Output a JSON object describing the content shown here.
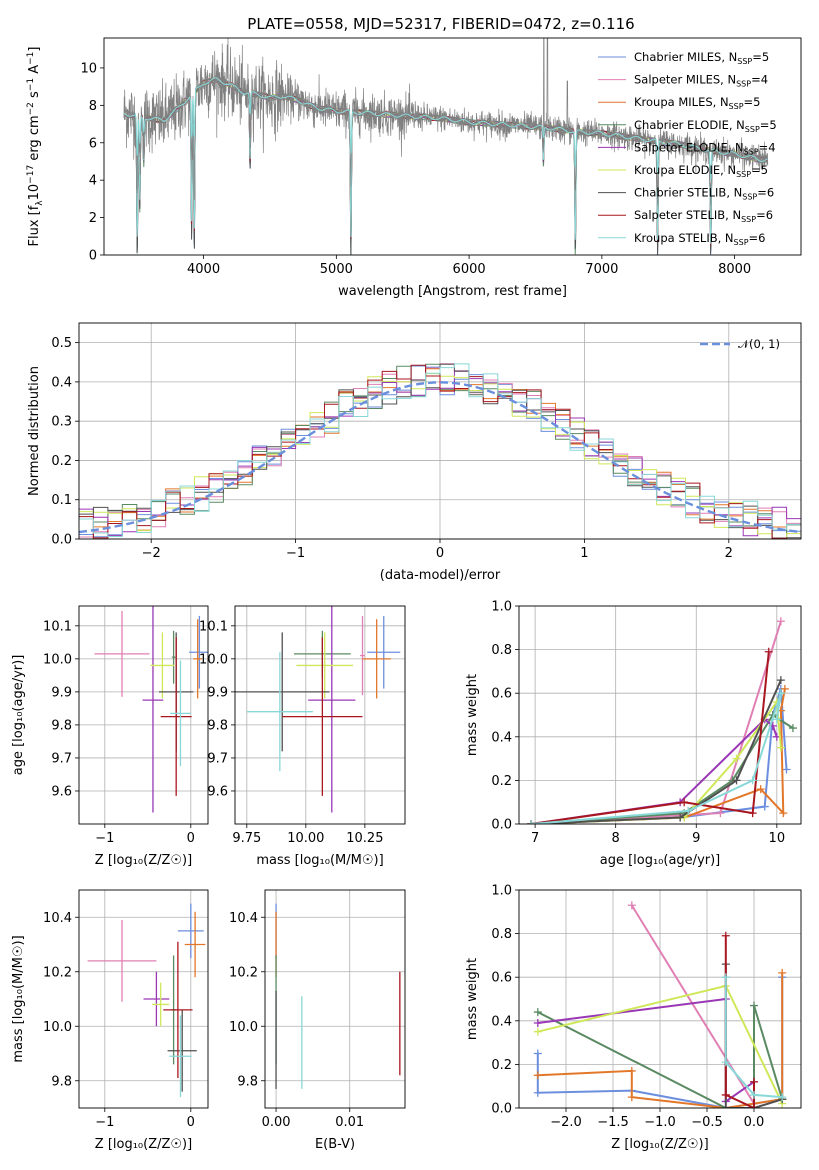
{
  "figure": {
    "title": "PLATE=0558, MJD=52317, FIBERID=0472, z=0.116"
  },
  "models": [
    {
      "name": "Chabrier MILES, N_SSP=5",
      "label_main": "Chabrier MILES, N",
      "label_sub": "SSP",
      "label_tail": "=5",
      "color": "#6b8ede"
    },
    {
      "name": "Salpeter MILES, N_SSP=4",
      "label_main": "Salpeter MILES, N",
      "label_sub": "SSP",
      "label_tail": "=4",
      "color": "#e07fb4"
    },
    {
      "name": "Kroupa MILES, N_SSP=5",
      "label_main": "Kroupa MILES, N",
      "label_sub": "SSP",
      "label_tail": "=5",
      "color": "#e2772a"
    },
    {
      "name": "Chabrier ELODIE, N_SSP=5",
      "label_main": "Chabrier ELODIE, N",
      "label_sub": "SSP",
      "label_tail": "=5",
      "color": "#5a8a62"
    },
    {
      "name": "Salpeter ELODIE, N_SSP=4",
      "label_main": "Salpeter ELODIE, N",
      "label_sub": "SSP",
      "label_tail": "=4",
      "color": "#9a37b5"
    },
    {
      "name": "Kroupa ELODIE, N_SSP=5",
      "label_main": "Kroupa ELODIE, N",
      "label_sub": "SSP",
      "label_tail": "=5",
      "color": "#cfe85a"
    },
    {
      "name": "Chabrier STELIB, N_SSP=6",
      "label_main": "Chabrier STELIB, N",
      "label_sub": "SSP",
      "label_tail": "=6",
      "color": "#505050"
    },
    {
      "name": "Salpeter STELIB, N_SSP=6",
      "label_main": "Salpeter STELIB, N",
      "label_sub": "SSP",
      "label_tail": "=6",
      "color": "#a8161f"
    },
    {
      "name": "Kroupa STELIB, N_SSP=6",
      "label_main": "Kroupa STELIB, N",
      "label_sub": "SSP",
      "label_tail": "=6",
      "color": "#88d8d8"
    }
  ],
  "chart_data": [
    {
      "id": "spectrum",
      "type": "line",
      "title": "PLATE=0558, MJD=52317, FIBERID=0472, z=0.116",
      "xlabel": "wavelength [Angstrom, rest frame]",
      "ylabel_main": "Flux [f",
      "ylabel_full": "Flux [fλ10^-17 erg cm^-2 s^-1 A^-1]",
      "xlim": [
        3250,
        8500
      ],
      "ylim": [
        0,
        11.6
      ],
      "xticks": [
        4000,
        5000,
        6000,
        7000,
        8000
      ],
      "yticks": [
        0,
        2,
        4,
        6,
        8,
        10
      ],
      "grid": false,
      "legend_position": "top-right",
      "data_color": "#808080",
      "continuum": {
        "x": [
          3400,
          3500,
          3600,
          3700,
          3800,
          3900,
          4000,
          4100,
          4200,
          4300,
          4400,
          4500,
          4600,
          4700,
          4800,
          4900,
          5000,
          5200,
          5400,
          5600,
          5800,
          6000,
          6200,
          6400,
          6600,
          6800,
          7000,
          7200,
          7400,
          7600,
          7800,
          8000,
          8200
        ],
        "y": [
          7.6,
          7.4,
          7.3,
          7.2,
          7.8,
          8.5,
          9.2,
          9.4,
          9.1,
          8.7,
          8.6,
          8.4,
          8.5,
          8.3,
          8.0,
          7.8,
          7.7,
          7.6,
          7.5,
          7.4,
          7.3,
          7.1,
          7.0,
          6.9,
          6.8,
          6.6,
          6.5,
          6.3,
          6.1,
          5.9,
          5.6,
          5.4,
          5.1
        ]
      },
      "features": [
        {
          "x": 3500,
          "depth": 7.5
        },
        {
          "x": 3520,
          "depth": 5.0
        },
        {
          "x": 3550,
          "depth": 2.5
        },
        {
          "x": 3910,
          "depth": 7.6
        },
        {
          "x": 3930,
          "depth": 8.5
        },
        {
          "x": 4350,
          "depth": 4.0
        },
        {
          "x": 5110,
          "depth": 7.6
        },
        {
          "x": 6560,
          "depth": 2.0
        },
        {
          "x": 6800,
          "depth": 6.6
        },
        {
          "x": 7420,
          "depth": 6.0
        },
        {
          "x": 7820,
          "depth": 5.6
        }
      ],
      "emission_lines": [
        {
          "x": 6563,
          "height": 13.0
        },
        {
          "x": 6590,
          "height": 13.0
        },
        {
          "x": 6740,
          "height": 9.3
        }
      ]
    },
    {
      "id": "residuals",
      "type": "histogram",
      "xlabel": "(data-model)/error",
      "ylabel": "Normed distribution",
      "xlim": [
        -2.5,
        2.5
      ],
      "ylim": [
        0,
        0.55
      ],
      "xticks": [
        -2,
        -1,
        0,
        1,
        2
      ],
      "xtick_labels": [
        "−2",
        "−1",
        "0",
        "1",
        "2"
      ],
      "yticks": [
        0,
        0.1,
        0.2,
        0.3,
        0.4,
        0.5
      ],
      "ytick_labels": [
        "0.0",
        "0.1",
        "0.2",
        "0.3",
        "0.4",
        "0.5"
      ],
      "grid": true,
      "legend_position": "top-right",
      "reference_curve": {
        "name": "N(0,1)",
        "label": "𝒩(0, 1)",
        "color": "#6a8fdc",
        "mean": 0,
        "sigma": 1
      },
      "bin_width": 0.1
    },
    {
      "id": "age-vs-Z",
      "type": "errorbar",
      "xlabel": "Z [log₁₀(Z/Z☉)]",
      "ylabel": "age  [log₁₀(age/yr)]",
      "xlim": [
        -1.3,
        0.2
      ],
      "ylim": [
        9.5,
        10.16
      ],
      "xticks": [
        -1,
        0
      ],
      "xtick_labels": [
        "−1",
        "0"
      ],
      "yticks": [
        9.6,
        9.7,
        9.8,
        9.9,
        10.0,
        10.1
      ],
      "ytick_labels": [
        "9.6",
        "9.7",
        "9.8",
        "9.9",
        "10.0",
        "10.1"
      ],
      "grid": true,
      "points": [
        {
          "model": 0,
          "x": 0.1,
          "xerr": 0.12,
          "y": 10.02,
          "yerr": 0.11
        },
        {
          "model": 1,
          "x": -0.8,
          "xerr": 0.32,
          "y": 10.015,
          "yerr": 0.13
        },
        {
          "model": 2,
          "x": 0.08,
          "xerr": 0.05,
          "y": 10.0,
          "yerr": 0.12
        },
        {
          "model": 3,
          "x": -0.2,
          "xerr": 0.02,
          "y": 10.005,
          "yerr": 0.08
        },
        {
          "model": 4,
          "x": -0.44,
          "xerr": 0.12,
          "y": 9.875,
          "yerr": 0.34
        },
        {
          "model": 5,
          "x": -0.33,
          "xerr": 0.14,
          "y": 9.98,
          "yerr": 0.1
        },
        {
          "model": 6,
          "x": -0.17,
          "xerr": 0.2,
          "y": 9.9,
          "yerr": 0.18
        },
        {
          "model": 7,
          "x": -0.17,
          "xerr": 0.18,
          "y": 9.825,
          "yerr": 0.24
        },
        {
          "model": 8,
          "x": -0.12,
          "xerr": 0.12,
          "y": 9.835,
          "yerr": 0.16
        }
      ]
    },
    {
      "id": "age-vs-mass",
      "type": "errorbar",
      "xlabel": "mass [log₁₀(M/M☉)]",
      "xlim": [
        9.7,
        10.42
      ],
      "ylim": [
        9.5,
        10.16
      ],
      "xticks": [
        9.75,
        10.0,
        10.25
      ],
      "xtick_labels": [
        "9.75",
        "10.00",
        "10.25"
      ],
      "yticks": [
        9.6,
        9.7,
        9.8,
        9.9,
        10.0,
        10.1
      ],
      "ytick_labels": [
        "9.6",
        "9.7",
        "9.8",
        "9.9",
        "10.0",
        "10.1"
      ],
      "grid": true,
      "points": [
        {
          "model": 0,
          "x": 10.33,
          "xerr": 0.07,
          "y": 10.02,
          "yerr": 0.11
        },
        {
          "model": 1,
          "x": 10.24,
          "xerr": 0.01,
          "y": 10.01,
          "yerr": 0.12
        },
        {
          "model": 2,
          "x": 10.3,
          "xerr": 0.06,
          "y": 10.0,
          "yerr": 0.12
        },
        {
          "model": 3,
          "x": 10.07,
          "xerr": 0.12,
          "y": 10.015,
          "yerr": 0.07
        },
        {
          "model": 4,
          "x": 10.11,
          "xerr": 0.1,
          "y": 9.875,
          "yerr": 0.34
        },
        {
          "model": 5,
          "x": 10.08,
          "xerr": 0.12,
          "y": 9.98,
          "yerr": 0.1
        },
        {
          "model": 6,
          "x": 9.9,
          "xerr": 0.2,
          "y": 9.9,
          "yerr": 0.18
        },
        {
          "model": 7,
          "x": 10.07,
          "xerr": 0.17,
          "y": 9.825,
          "yerr": 0.24
        },
        {
          "model": 8,
          "x": 9.89,
          "xerr": 0.14,
          "y": 9.84,
          "yerr": 0.18
        }
      ]
    },
    {
      "id": "massweight-vs-age",
      "type": "line",
      "xlabel": "age  [log₁₀(age/yr)]",
      "ylabel": "mass weight",
      "xlim": [
        6.8,
        10.3
      ],
      "ylim": [
        0,
        1.0
      ],
      "xticks": [
        7,
        8,
        9,
        10
      ],
      "xtick_labels": [
        "7",
        "8",
        "9",
        "10"
      ],
      "yticks": [
        0,
        0.2,
        0.4,
        0.6,
        0.8,
        1.0
      ],
      "ytick_labels": [
        "0.0",
        "0.2",
        "0.4",
        "0.6",
        "0.8",
        "1.0"
      ],
      "grid": true,
      "series": [
        {
          "model": 0,
          "x": [
            6.95,
            8.8,
            9.85,
            9.95,
            10.05,
            10.12
          ],
          "y": [
            0.0,
            0.03,
            0.08,
            0.5,
            0.62,
            0.25
          ]
        },
        {
          "model": 1,
          "x": [
            6.95,
            8.8,
            9.3,
            10.05
          ],
          "y": [
            0.0,
            0.04,
            0.05,
            0.93
          ]
        },
        {
          "model": 2,
          "x": [
            6.95,
            8.85,
            9.8,
            10.08,
            10.05,
            10.1
          ],
          "y": [
            0.0,
            0.03,
            0.16,
            0.05,
            0.52,
            0.62
          ]
        },
        {
          "model": 3,
          "x": [
            6.95,
            8.85,
            9.45,
            9.95,
            10.2
          ],
          "y": [
            0.0,
            0.05,
            0.2,
            0.5,
            0.44
          ]
        },
        {
          "model": 4,
          "x": [
            6.95,
            8.8,
            9.85,
            9.95,
            10.0
          ],
          "y": [
            0.0,
            0.1,
            0.48,
            0.45,
            0.4
          ]
        },
        {
          "model": 5,
          "x": [
            6.95,
            8.85,
            9.5,
            10.0,
            10.05
          ],
          "y": [
            0.0,
            0.03,
            0.3,
            0.56,
            0.35
          ]
        },
        {
          "model": 6,
          "x": [
            6.95,
            8.8,
            9.5,
            10.05
          ],
          "y": [
            0.0,
            0.03,
            0.2,
            0.66
          ]
        },
        {
          "model": 7,
          "x": [
            6.95,
            8.85,
            9.7,
            9.9
          ],
          "y": [
            0.0,
            0.1,
            0.05,
            0.79
          ]
        },
        {
          "model": 8,
          "x": [
            6.95,
            8.9,
            9.7,
            10.05,
            10.0
          ],
          "y": [
            0.0,
            0.06,
            0.2,
            0.6,
            0.48
          ]
        }
      ]
    },
    {
      "id": "mass-vs-Z",
      "type": "errorbar",
      "xlabel": "Z [log₁₀(Z/Z☉)]",
      "ylabel": "mass [log₁₀(M/M☉)]",
      "xlim": [
        -1.3,
        0.2
      ],
      "ylim": [
        9.7,
        10.5
      ],
      "xticks": [
        -1,
        0
      ],
      "xtick_labels": [
        "−1",
        "0"
      ],
      "yticks": [
        9.8,
        10.0,
        10.2,
        10.4
      ],
      "ytick_labels": [
        "9.8",
        "10.0",
        "10.2",
        "10.4"
      ],
      "grid": true,
      "points": [
        {
          "model": 0,
          "x": 0.0,
          "xerr": 0.15,
          "y": 10.35,
          "yerr": 0.1
        },
        {
          "model": 1,
          "x": -0.8,
          "xerr": 0.4,
          "y": 10.24,
          "yerr": 0.15
        },
        {
          "model": 2,
          "x": 0.05,
          "xerr": 0.12,
          "y": 10.3,
          "yerr": 0.12
        },
        {
          "model": 3,
          "x": -0.2,
          "xerr": 0.03,
          "y": 10.06,
          "yerr": 0.2
        },
        {
          "model": 4,
          "x": -0.4,
          "xerr": 0.15,
          "y": 10.1,
          "yerr": 0.1
        },
        {
          "model": 5,
          "x": -0.35,
          "xerr": 0.1,
          "y": 10.08,
          "yerr": 0.08
        },
        {
          "model": 6,
          "x": -0.1,
          "xerr": 0.17,
          "y": 9.91,
          "yerr": 0.15
        },
        {
          "model": 7,
          "x": -0.15,
          "xerr": 0.17,
          "y": 10.06,
          "yerr": 0.25
        },
        {
          "model": 8,
          "x": -0.12,
          "xerr": 0.13,
          "y": 9.89,
          "yerr": 0.15
        }
      ]
    },
    {
      "id": "mass-vs-ebv",
      "type": "errorbar",
      "xlabel": "E(B-V)",
      "xlim": [
        -0.0015,
        0.0175
      ],
      "ylim": [
        9.7,
        10.5
      ],
      "xticks": [
        0.0,
        0.01
      ],
      "xtick_labels": [
        "0.00",
        "0.01"
      ],
      "yticks": [
        9.8,
        10.0,
        10.2,
        10.4
      ],
      "ytick_labels": [
        "9.8",
        "10.0",
        "10.2",
        "10.4"
      ],
      "grid": true,
      "points": [
        {
          "model": 0,
          "x": 0.0,
          "xerr": 0,
          "y": 10.35,
          "yerr": 0.1
        },
        {
          "model": 2,
          "x": 0.0,
          "xerr": 0,
          "y": 10.3,
          "yerr": 0.12
        },
        {
          "model": 3,
          "x": 0.0,
          "xerr": 0,
          "y": 10.06,
          "yerr": 0.2
        },
        {
          "model": 6,
          "x": 0.0,
          "xerr": 0,
          "y": 9.95,
          "yerr": 0.18
        },
        {
          "model": 8,
          "x": 0.0035,
          "xerr": 0,
          "y": 9.94,
          "yerr": 0.17
        },
        {
          "model": 7,
          "x": 0.0168,
          "xerr": 0,
          "y": 10.01,
          "yerr": 0.19
        }
      ]
    },
    {
      "id": "massweight-vs-Z",
      "type": "line",
      "xlabel": "Z [log₁₀(Z/Z☉)]",
      "ylabel": "mass weight",
      "xlim": [
        -2.5,
        0.5
      ],
      "ylim": [
        0,
        1.0
      ],
      "xticks": [
        -2.0,
        -1.5,
        -1.0,
        -0.5,
        0.0
      ],
      "xtick_labels": [
        "−2.0",
        "−1.5",
        "−1.0",
        "−0.5",
        "0.0"
      ],
      "yticks": [
        0,
        0.2,
        0.4,
        0.6,
        0.8,
        1.0
      ],
      "ytick_labels": [
        "0.0",
        "0.2",
        "0.4",
        "0.6",
        "0.8",
        "1.0"
      ],
      "grid": true,
      "series": [
        {
          "model": 0,
          "x": [
            -2.3,
            -2.3,
            -1.3,
            -0.3,
            0.3,
            0.3
          ],
          "y": [
            0.25,
            0.07,
            0.08,
            0.0,
            0.04,
            0.6
          ]
        },
        {
          "model": 1,
          "x": [
            -1.3,
            0.0
          ],
          "y": [
            0.93,
            0.02
          ]
        },
        {
          "model": 2,
          "x": [
            -2.3,
            -1.3,
            -1.3,
            -0.3,
            0.3,
            0.3
          ],
          "y": [
            0.15,
            0.17,
            0.05,
            0.0,
            0.04,
            0.62
          ]
        },
        {
          "model": 3,
          "x": [
            -2.3,
            -0.3,
            0.0,
            0.0,
            0.3
          ],
          "y": [
            0.44,
            0.0,
            0.0,
            0.47,
            0.04
          ]
        },
        {
          "model": 4,
          "x": [
            -2.3,
            -0.3,
            -0.3,
            0.0
          ],
          "y": [
            0.39,
            0.5,
            0.03,
            0.12
          ]
        },
        {
          "model": 5,
          "x": [
            -2.3,
            -0.3,
            0.3
          ],
          "y": [
            0.35,
            0.56,
            0.02
          ]
        },
        {
          "model": 6,
          "x": [
            -0.3,
            -0.3,
            0.0,
            0.3
          ],
          "y": [
            0.66,
            0.0,
            0.0,
            0.04
          ]
        },
        {
          "model": 7,
          "x": [
            -0.3,
            -0.3,
            0.0,
            0.0
          ],
          "y": [
            0.79,
            0.06,
            0.0,
            0.12
          ]
        },
        {
          "model": 8,
          "x": [
            -0.3,
            -0.3,
            0.0,
            0.3
          ],
          "y": [
            0.6,
            0.21,
            0.06,
            0.05
          ]
        }
      ]
    }
  ]
}
